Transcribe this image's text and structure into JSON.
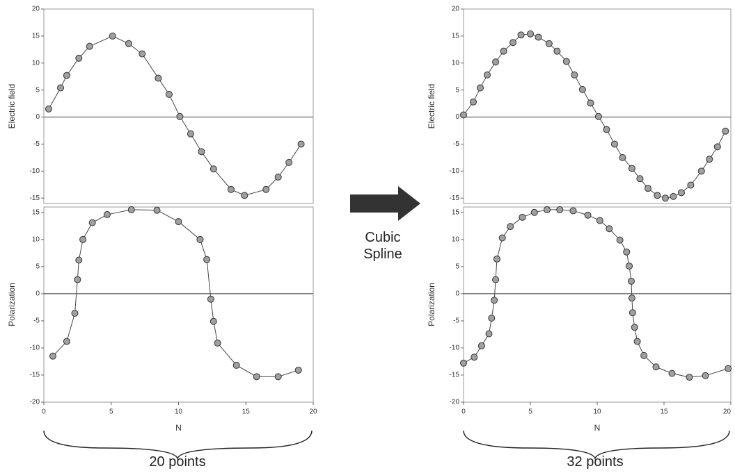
{
  "chart_data": [
    {
      "type": "scatter",
      "ylabel": "Electric field",
      "xlim": [
        0,
        20
      ],
      "ylim": [
        -16,
        20
      ],
      "yticks": [
        -15,
        -10,
        -5,
        0,
        5,
        10,
        15,
        20
      ],
      "color": "#a0a0a0",
      "x": [
        0.36,
        1.24,
        1.7,
        2.6,
        3.4,
        5.1,
        6.3,
        7.3,
        8.5,
        9.3,
        10.1,
        10.9,
        11.7,
        12.6,
        13.9,
        14.9,
        16.5,
        17.4,
        18.2,
        19.1
      ],
      "values": [
        1.5,
        5.4,
        7.7,
        10.9,
        13.1,
        15,
        13.6,
        11.7,
        7.2,
        4.2,
        0.1,
        -3.1,
        -6.4,
        -9.6,
        -13.4,
        -14.5,
        -13.4,
        -11.1,
        -8.4,
        -5.0
      ]
    },
    {
      "type": "scatter",
      "ylabel": "Polarization",
      "xlabel": "N",
      "xlim": [
        0,
        20
      ],
      "xticks": [
        0,
        5,
        10,
        15,
        20
      ],
      "ylim": [
        -20,
        16
      ],
      "yticks": [
        -20,
        -15,
        -10,
        -5,
        0,
        5,
        10,
        15
      ],
      "color": "#a0a0a0",
      "x": [
        0.67,
        1.7,
        2.3,
        2.5,
        2.6,
        2.9,
        3.6,
        4.7,
        6.5,
        8.4,
        10.0,
        11.6,
        12.1,
        12.4,
        12.6,
        12.9,
        14.3,
        15.8,
        17.4,
        18.9
      ],
      "values": [
        -11.5,
        -8.8,
        -3.6,
        2.6,
        6.2,
        10.0,
        13.1,
        14.6,
        15.5,
        15.4,
        13.3,
        10.0,
        6.3,
        -1.0,
        -5.1,
        -9.1,
        -13.2,
        -15.3,
        -15.3,
        -14.1
      ]
    },
    {
      "type": "scatter",
      "ylabel": "Electric field",
      "xlim": [
        0,
        20
      ],
      "ylim": [
        -16,
        20
      ],
      "yticks": [
        -15,
        -10,
        -5,
        0,
        5,
        10,
        15,
        20
      ],
      "color": "#a0a0a0",
      "x": [
        0.0,
        0.73,
        1.25,
        1.77,
        2.4,
        3.0,
        3.7,
        4.3,
        5.0,
        5.6,
        6.4,
        7.0,
        7.7,
        8.3,
        8.9,
        9.5,
        10.1,
        10.7,
        11.3,
        11.9,
        12.6,
        13.2,
        13.8,
        14.5,
        15.1,
        15.7,
        16.3,
        17.0,
        17.8,
        18.4,
        19.0,
        19.6
      ],
      "values": [
        0.4,
        2.8,
        5.4,
        7.8,
        10.2,
        12.2,
        13.8,
        15.2,
        15.4,
        14.8,
        13.6,
        12.2,
        10.3,
        7.8,
        5.1,
        2.6,
        0.1,
        -2.3,
        -5.0,
        -7.5,
        -9.5,
        -11.4,
        -13.2,
        -14.5,
        -15.0,
        -14.7,
        -14.0,
        -12.6,
        -10.0,
        -7.8,
        -5.5,
        -2.6
      ]
    },
    {
      "type": "scatter",
      "ylabel": "Polarization",
      "xlabel": "N",
      "xlim": [
        0,
        20
      ],
      "xticks": [
        0,
        5,
        10,
        15,
        20
      ],
      "ylim": [
        -20,
        16
      ],
      "yticks": [
        -20,
        -15,
        -10,
        -5,
        0,
        5,
        10,
        15
      ],
      "color": "#a0a0a0",
      "x": [
        0.0,
        0.8,
        1.35,
        1.9,
        2.1,
        2.3,
        2.4,
        2.5,
        2.9,
        3.5,
        4.4,
        5.3,
        6.25,
        7.2,
        8.2,
        9.3,
        10.2,
        10.9,
        11.7,
        12.2,
        12.4,
        12.55,
        12.6,
        12.65,
        12.8,
        13.0,
        13.5,
        14.4,
        15.6,
        16.9,
        18.1,
        19.8
      ],
      "values": [
        -12.8,
        -11.7,
        -9.6,
        -7.4,
        -4.5,
        -1.2,
        2.6,
        6.4,
        10.3,
        12.4,
        14.1,
        15.0,
        15.5,
        15.5,
        15.3,
        14.5,
        13.5,
        12.0,
        9.9,
        7.7,
        5.1,
        2.3,
        -0.8,
        -3.5,
        -6.2,
        -8.8,
        -11.4,
        -13.5,
        -14.7,
        -15.4,
        -15.1,
        -13.8
      ]
    }
  ],
  "figure": {
    "method": "Cubic Spline",
    "left_count": "20 points",
    "right_count": "32 points"
  }
}
